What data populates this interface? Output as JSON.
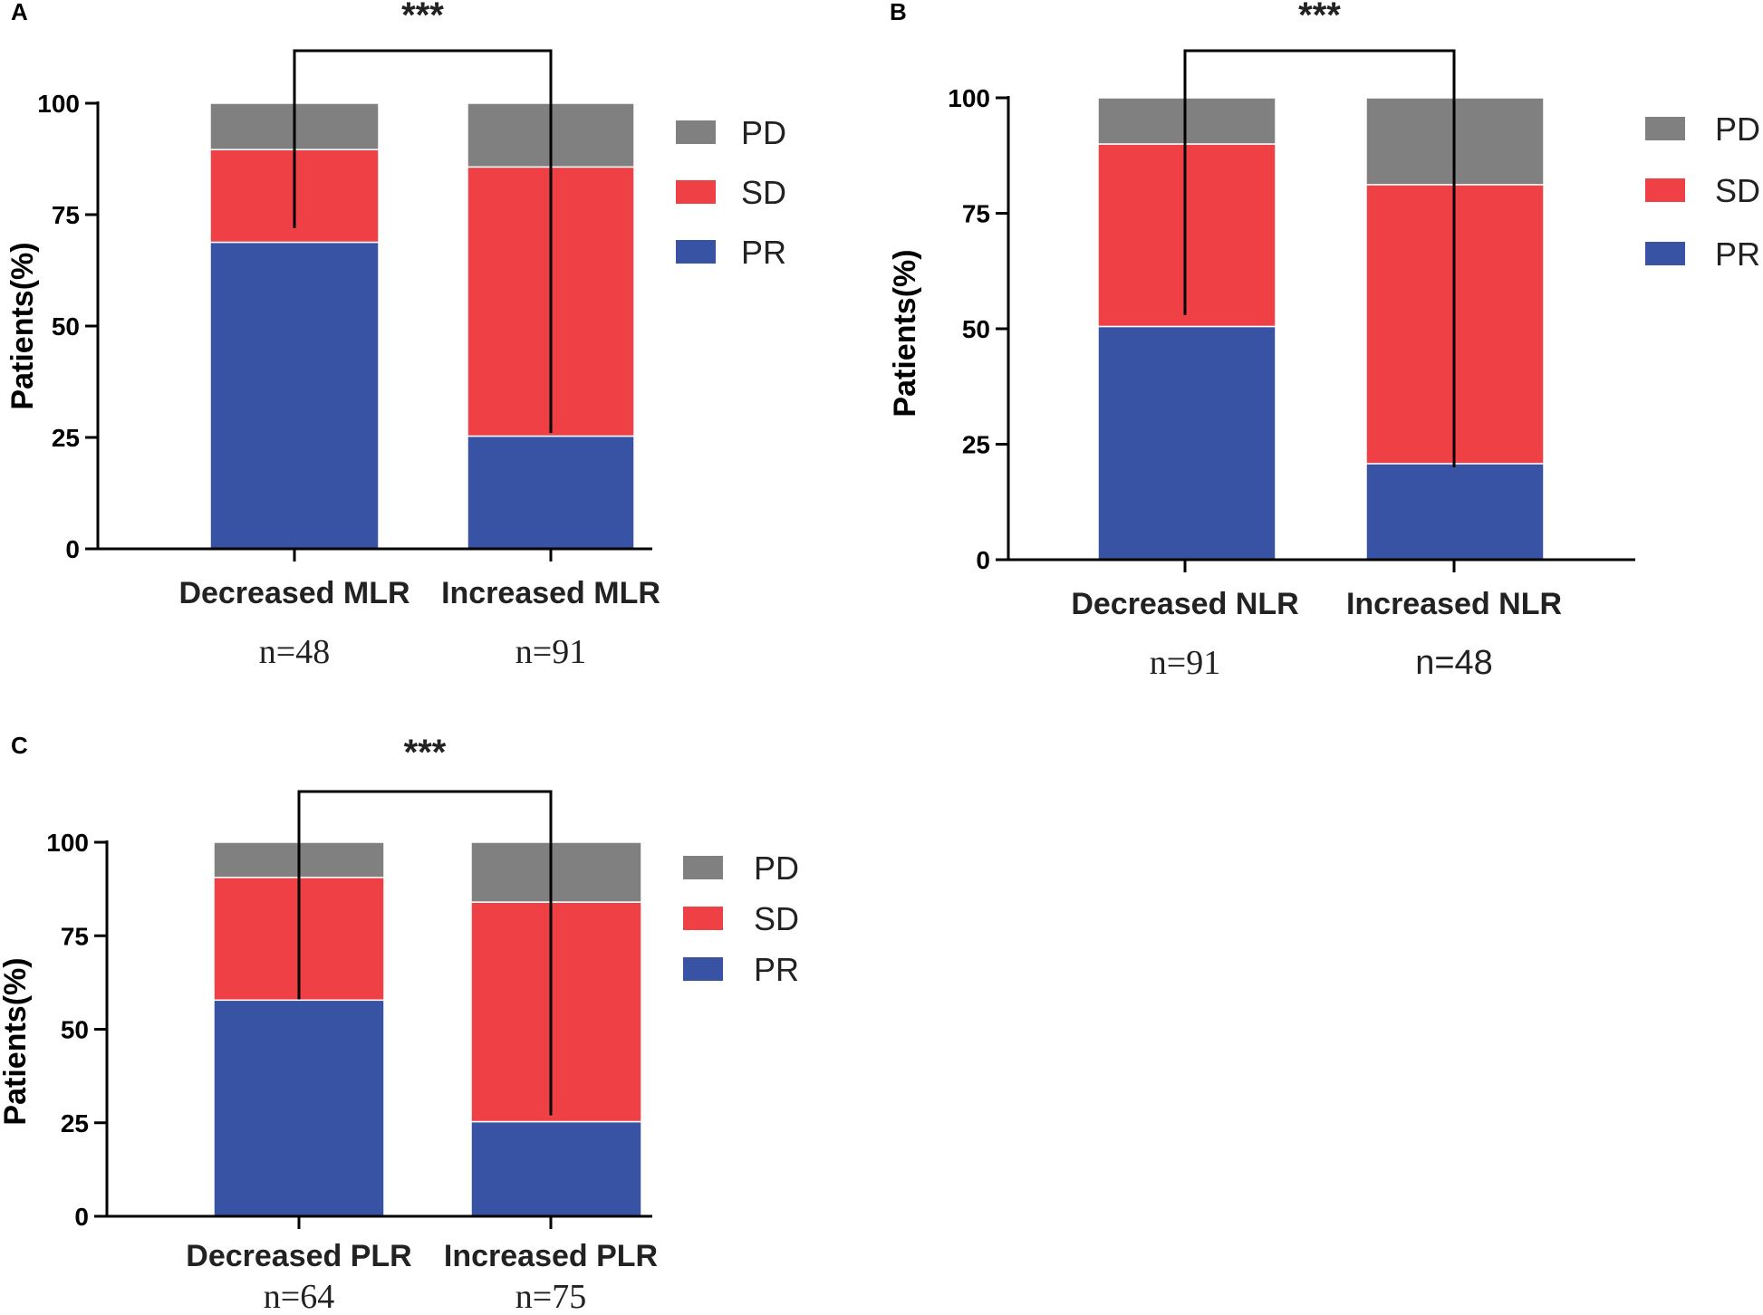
{
  "figure": {
    "colors": {
      "PR": "#3953a4",
      "SD": "#ef4045",
      "PD": "#808080"
    },
    "legend": [
      "PD",
      "SD",
      "PR"
    ]
  },
  "chart_data": [
    {
      "panel": "A",
      "type": "bar",
      "stacked": true,
      "ylabel": "Patients(%)",
      "ylim": [
        0,
        100
      ],
      "yticks": [
        "0",
        "25",
        "50",
        "75",
        "100"
      ],
      "categories": [
        "Decreased MLR",
        "Increased MLR"
      ],
      "n_labels": [
        "n=48",
        "n=91"
      ],
      "series": [
        {
          "name": "PR",
          "values": [
            68.8,
            25.3
          ]
        },
        {
          "name": "SD",
          "values": [
            20.8,
            60.4
          ]
        },
        {
          "name": "PD",
          "values": [
            10.4,
            14.3
          ]
        }
      ],
      "significance": "***",
      "bracket_drop": [
        72,
        26
      ]
    },
    {
      "panel": "B",
      "type": "bar",
      "stacked": true,
      "ylabel": "Patients(%)",
      "ylim": [
        0,
        100
      ],
      "yticks": [
        "0",
        "25",
        "50",
        "75",
        "100"
      ],
      "categories": [
        "Decreased NLR",
        "Increased NLR"
      ],
      "n_labels": [
        "n=91",
        "n=48"
      ],
      "series": [
        {
          "name": "PR",
          "values": [
            50.5,
            20.8
          ]
        },
        {
          "name": "SD",
          "values": [
            39.5,
            60.4
          ]
        },
        {
          "name": "PD",
          "values": [
            10.0,
            18.8
          ]
        }
      ],
      "significance": "***",
      "bracket_drop": [
        53,
        20
      ]
    },
    {
      "panel": "C",
      "type": "bar",
      "stacked": true,
      "ylabel": "Patients(%)",
      "ylim": [
        0,
        100
      ],
      "yticks": [
        "0",
        "25",
        "50",
        "75",
        "100"
      ],
      "categories": [
        "Decreased PLR",
        "Increased PLR"
      ],
      "n_labels": [
        "n=64",
        "n=75"
      ],
      "series": [
        {
          "name": "PR",
          "values": [
            57.8,
            25.3
          ]
        },
        {
          "name": "SD",
          "values": [
            32.8,
            58.7
          ]
        },
        {
          "name": "PD",
          "values": [
            9.4,
            16.0
          ]
        }
      ],
      "significance": "***",
      "bracket_drop": [
        58,
        27
      ]
    }
  ]
}
